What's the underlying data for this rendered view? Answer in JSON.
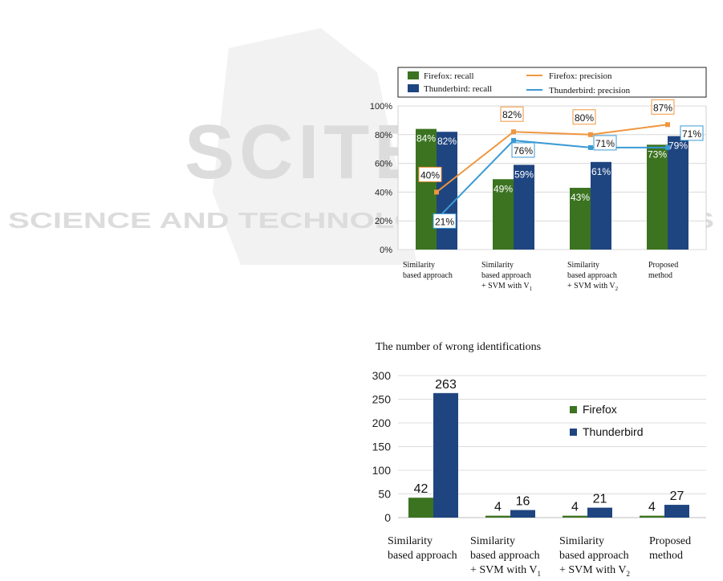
{
  "watermark": {
    "line1": "SCITEPRESS",
    "line2": "SCIENCE AND TECHNOLOGY PUBLICATIONS"
  },
  "colors": {
    "firefox_bar": "#3b7320",
    "thunderbird_bar": "#1f4580",
    "firefox_line": "#f0963e",
    "thunderbird_line": "#3b9ad4"
  },
  "chart_data": [
    {
      "type": "bar",
      "categories": [
        "Similarity based approach",
        "Similarity based approach + SVM with V1",
        "Similarity based approach + SVM with V2",
        "Proposed method"
      ],
      "ylim": [
        0,
        100
      ],
      "yticks": [
        "0%",
        "20%",
        "40%",
        "60%",
        "80%",
        "100%"
      ],
      "series": [
        {
          "name": "Firefox: recall",
          "kind": "bar",
          "values": [
            84,
            49,
            43,
            73
          ],
          "labels": [
            "84%",
            "49%",
            "43%",
            "73%"
          ]
        },
        {
          "name": "Thunderbird: recall",
          "kind": "bar",
          "values": [
            82,
            59,
            61,
            79
          ],
          "labels": [
            "82%",
            "59%",
            "61%",
            "79%"
          ]
        },
        {
          "name": "Firefox: precision",
          "kind": "line",
          "values": [
            40,
            82,
            80,
            87
          ],
          "labels": [
            "40%",
            "82%",
            "80%",
            "87%"
          ]
        },
        {
          "name": "Thunderbird: precision",
          "kind": "line",
          "values": [
            21,
            76,
            71,
            71
          ],
          "labels": [
            "21%",
            "76%",
            "71%",
            "71%"
          ]
        }
      ],
      "legend_position": "top"
    },
    {
      "type": "bar",
      "title": "The number of wrong identifications",
      "categories": [
        "Similarity based approach",
        "Similarity based approach + SVM with V1",
        "Similarity based approach + SVM with V2",
        "Proposed method"
      ],
      "ylim": [
        0,
        300
      ],
      "yticks": [
        "0",
        "50",
        "100",
        "150",
        "200",
        "250",
        "300"
      ],
      "series": [
        {
          "name": "Firefox",
          "values": [
            42,
            4,
            4,
            4
          ]
        },
        {
          "name": "Thunderbird",
          "values": [
            263,
            16,
            21,
            27
          ]
        }
      ],
      "legend_position": "top-right"
    }
  ],
  "c1_cat_lines": [
    [
      "Similarity",
      "based approach"
    ],
    [
      "Similarity",
      "based approach",
      "+ SVM with V",
      "1"
    ],
    [
      "Similarity",
      "based approach",
      "+ SVM with V",
      "2"
    ],
    [
      "Proposed",
      "method"
    ]
  ]
}
